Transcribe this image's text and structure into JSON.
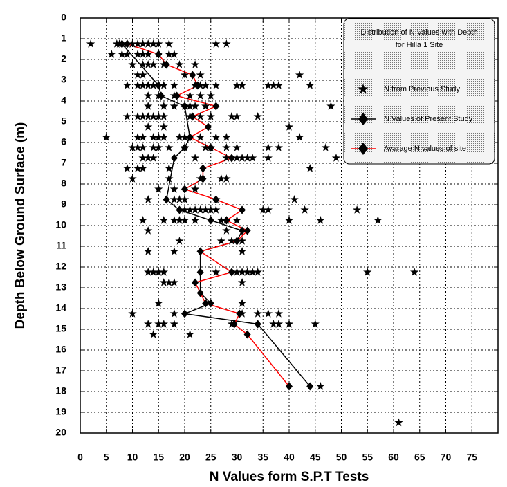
{
  "chart_data": {
    "type": "scatter",
    "xlabel": "N Values form S.P.T Tests",
    "ylabel": "Depth Below Ground Surface (m)",
    "xlim": [
      0,
      80
    ],
    "ylim": [
      0,
      20
    ],
    "xticks": [
      0,
      5,
      10,
      15,
      20,
      25,
      30,
      35,
      40,
      45,
      50,
      55,
      60,
      65,
      70,
      75
    ],
    "yticks": [
      0,
      1,
      2,
      3,
      4,
      5,
      6,
      7,
      8,
      9,
      10,
      11,
      12,
      13,
      14,
      15,
      16,
      17,
      18,
      19,
      20
    ],
    "y_inverted": true,
    "grid": true,
    "legend_title": [
      "Distribution  of N Values with Depth",
      "for Hilla 1 Site"
    ],
    "legend_position": "upper right",
    "series": [
      {
        "name": "N from Previous Study",
        "color": "#000000",
        "marker": "star",
        "line": false,
        "x": [
          2,
          7,
          7.5,
          8,
          9,
          10,
          11,
          12,
          13,
          14,
          15,
          17,
          26,
          28,
          6,
          8,
          9,
          11,
          12,
          13,
          15,
          17,
          18,
          10,
          12,
          13,
          14,
          16,
          19,
          22,
          11,
          12,
          20,
          23,
          42,
          9,
          11,
          12,
          13,
          14,
          16,
          18,
          22,
          23,
          24,
          26,
          30,
          31,
          36,
          37,
          38,
          44,
          13,
          15,
          18,
          21,
          23,
          25,
          13,
          16,
          18,
          20,
          21,
          22,
          24,
          48,
          9,
          11,
          12,
          13,
          14,
          15,
          16,
          21,
          23,
          25,
          29,
          30,
          34,
          13,
          16,
          40,
          5,
          11,
          12,
          14,
          15,
          16,
          19,
          20,
          21,
          23,
          26,
          28,
          42,
          10,
          11,
          12,
          14,
          15,
          17,
          20,
          24,
          25,
          28,
          30,
          36,
          38,
          47,
          12,
          13,
          14,
          22,
          28,
          30,
          31,
          32,
          33,
          36,
          49,
          9,
          11,
          12,
          17,
          44,
          10,
          17,
          23,
          27,
          28,
          15,
          18,
          22,
          13,
          18,
          19,
          20,
          26,
          41,
          20,
          21,
          22,
          23,
          24,
          25,
          26,
          35,
          36,
          43,
          53,
          12,
          16,
          18,
          19,
          20,
          22,
          27,
          28,
          30,
          40,
          46,
          57,
          13,
          28,
          19,
          27,
          29,
          31,
          13,
          18,
          31,
          13,
          14,
          15,
          16,
          26,
          30,
          31,
          32,
          33,
          34,
          55,
          64,
          16,
          17,
          18,
          31,
          15,
          31,
          10,
          18,
          31,
          34,
          36,
          38,
          13,
          15,
          16,
          18,
          29,
          37,
          38,
          40,
          45,
          14,
          21,
          46,
          61
        ],
        "y": [
          1.25,
          1.25,
          1.25,
          1.25,
          1.25,
          1.25,
          1.25,
          1.25,
          1.25,
          1.25,
          1.25,
          1.25,
          1.25,
          1.25,
          1.75,
          1.75,
          1.75,
          1.75,
          1.75,
          1.75,
          1.75,
          1.75,
          1.75,
          2.25,
          2.25,
          2.25,
          2.25,
          2.25,
          2.25,
          2.25,
          2.75,
          2.75,
          2.75,
          2.75,
          2.75,
          3.25,
          3.25,
          3.25,
          3.25,
          3.25,
          3.25,
          3.25,
          3.25,
          3.25,
          3.25,
          3.25,
          3.25,
          3.25,
          3.25,
          3.25,
          3.25,
          3.25,
          3.75,
          3.75,
          3.75,
          3.75,
          3.75,
          3.75,
          4.25,
          4.25,
          4.25,
          4.25,
          4.25,
          4.25,
          4.25,
          4.25,
          4.75,
          4.75,
          4.75,
          4.75,
          4.75,
          4.75,
          4.75,
          4.75,
          4.75,
          4.75,
          4.75,
          4.75,
          4.75,
          5.25,
          5.25,
          5.25,
          5.75,
          5.75,
          5.75,
          5.75,
          5.75,
          5.75,
          5.75,
          5.75,
          5.75,
          5.75,
          5.75,
          5.75,
          5.75,
          6.25,
          6.25,
          6.25,
          6.25,
          6.25,
          6.25,
          6.25,
          6.25,
          6.25,
          6.25,
          6.25,
          6.25,
          6.25,
          6.25,
          6.75,
          6.75,
          6.75,
          6.75,
          6.75,
          6.75,
          6.75,
          6.75,
          6.75,
          6.75,
          6.75,
          7.25,
          7.25,
          7.25,
          7.25,
          7.25,
          7.75,
          7.75,
          7.75,
          7.75,
          7.75,
          8.25,
          8.25,
          8.25,
          8.75,
          8.75,
          8.75,
          8.75,
          8.75,
          8.75,
          9.25,
          9.25,
          9.25,
          9.25,
          9.25,
          9.25,
          9.25,
          9.25,
          9.25,
          9.25,
          9.25,
          9.75,
          9.75,
          9.75,
          9.75,
          9.75,
          9.75,
          9.75,
          9.75,
          9.75,
          9.75,
          9.75,
          9.75,
          10.25,
          10.25,
          10.75,
          10.75,
          10.75,
          10.75,
          11.25,
          11.25,
          11.25,
          12.25,
          12.25,
          12.25,
          12.25,
          12.25,
          12.25,
          12.25,
          12.25,
          12.25,
          12.25,
          12.25,
          12.25,
          12.75,
          12.75,
          12.75,
          12.75,
          13.75,
          13.75,
          14.25,
          14.25,
          14.25,
          14.25,
          14.25,
          14.25,
          14.75,
          14.75,
          14.75,
          14.75,
          14.75,
          14.75,
          14.75,
          14.75,
          14.75,
          15.25,
          15.25,
          17.75,
          19.5
        ]
      },
      {
        "name": "N Values of Present Study",
        "color": "#000000",
        "marker": "diamond",
        "line": true,
        "x": [
          8,
          15,
          15.5,
          20,
          21,
          20,
          18,
          16.5,
          19,
          25,
          31,
          30,
          23,
          23,
          23,
          25,
          20,
          34,
          44
        ],
        "y": [
          1.25,
          3.25,
          3.75,
          4.25,
          5.75,
          6.25,
          6.75,
          8.75,
          9.25,
          9.75,
          10.25,
          10.75,
          11.25,
          12.25,
          13.25,
          13.75,
          14.25,
          14.75,
          17.75
        ]
      },
      {
        "name": "Avarage N values of site",
        "color": "#ff0000",
        "marker": "diamond",
        "line": true,
        "x": [
          9,
          15,
          16.5,
          21.5,
          22.5,
          18.5,
          26,
          21.5,
          24.5,
          21,
          25,
          29,
          23.5,
          23.5,
          20,
          26,
          31,
          28,
          32,
          30,
          23,
          29,
          22,
          24,
          30.5,
          29.5,
          32,
          40
        ],
        "y": [
          1.25,
          1.75,
          2.25,
          2.75,
          3.25,
          3.75,
          4.25,
          4.75,
          5.25,
          5.75,
          6.25,
          6.75,
          7.25,
          7.75,
          8.25,
          8.75,
          9.25,
          9.75,
          10.25,
          10.75,
          11.25,
          12.25,
          12.75,
          13.75,
          14.25,
          14.75,
          15.25,
          17.75
        ]
      }
    ]
  }
}
